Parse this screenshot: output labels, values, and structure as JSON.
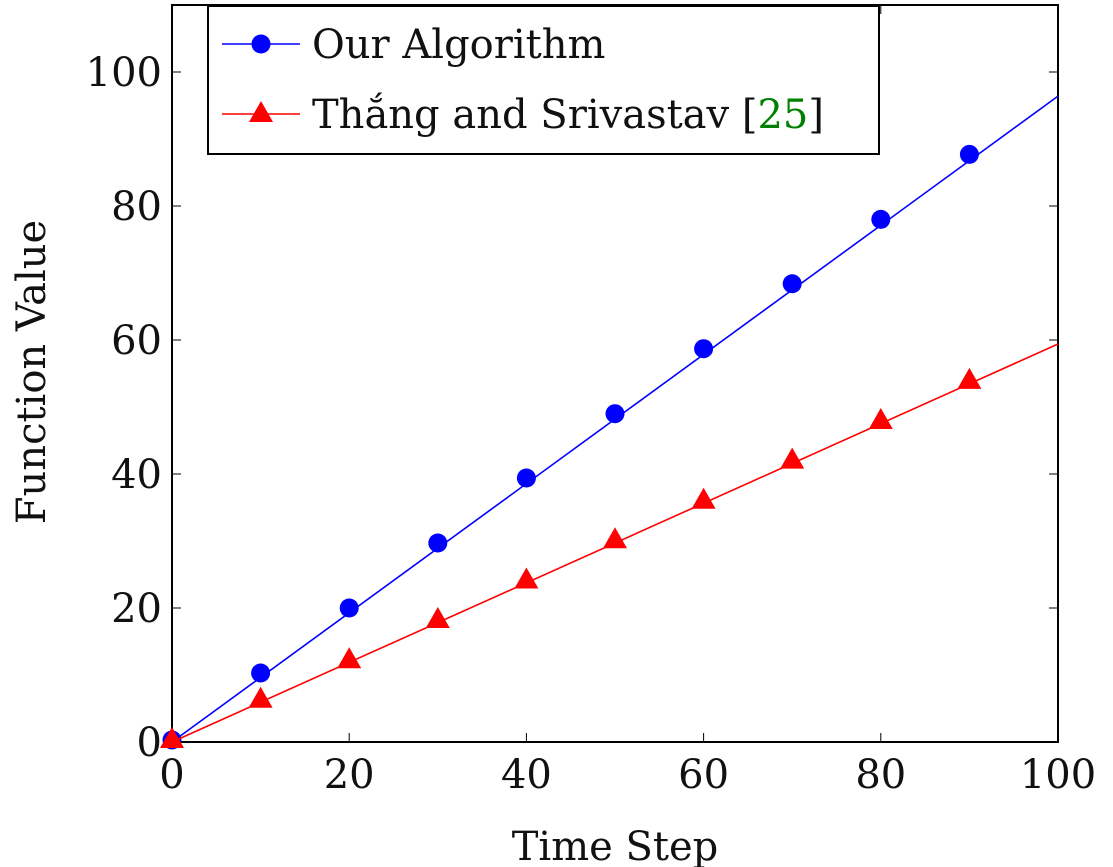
{
  "chart_data": {
    "type": "line",
    "xlabel": "Time Step",
    "ylabel": "Function Value",
    "xlim": [
      0,
      100
    ],
    "ylim": [
      0,
      110
    ],
    "xticks": [
      0,
      20,
      40,
      60,
      80,
      100
    ],
    "yticks": [
      0,
      20,
      40,
      60,
      80,
      100
    ],
    "grid": false,
    "legend_position": "top-left",
    "series": [
      {
        "name": "Our Algorithm",
        "color": "#0000ff",
        "marker": "circle",
        "line_x": [
          0,
          100
        ],
        "line_y": [
          0,
          96.4
        ],
        "x": [
          0,
          10,
          20,
          30,
          40,
          50,
          60,
          70,
          80,
          90
        ],
        "y": [
          0.3,
          10.3,
          20.0,
          29.7,
          39.4,
          49.0,
          58.7,
          68.4,
          78.0,
          87.7
        ]
      },
      {
        "name": "Thắng and Srivastav",
        "citation": "25",
        "citation_color": "#008000",
        "color": "#ff0000",
        "marker": "triangle",
        "line_x": [
          0,
          100
        ],
        "line_y": [
          0,
          59.4
        ],
        "x": [
          0,
          10,
          20,
          30,
          40,
          50,
          60,
          70,
          80,
          90
        ],
        "y": [
          0.3,
          6.3,
          12.2,
          18.2,
          24.1,
          30.1,
          36.0,
          42.0,
          47.9,
          53.9
        ]
      }
    ]
  }
}
